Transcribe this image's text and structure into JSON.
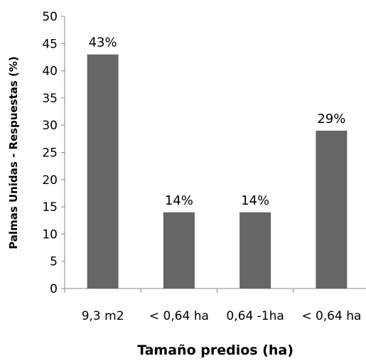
{
  "chart_data": {
    "type": "bar",
    "categories": [
      "9,3 m2",
      "< 0,64 ha",
      "0,64 -1ha",
      "< 0,64 ha"
    ],
    "values": [
      43,
      14,
      14,
      29
    ],
    "data_labels": [
      "43%",
      "14%",
      "14%",
      "29%"
    ],
    "title": "",
    "xlabel": "Tamaño predios (ha)",
    "ylabel": "Palmas Unidas - Respuestas (%)",
    "ylim": [
      0,
      50
    ],
    "yticks": [
      0,
      5,
      10,
      15,
      20,
      25,
      30,
      35,
      40,
      45,
      50
    ],
    "bar_color": "#666666",
    "grid": false,
    "legend": "none"
  }
}
